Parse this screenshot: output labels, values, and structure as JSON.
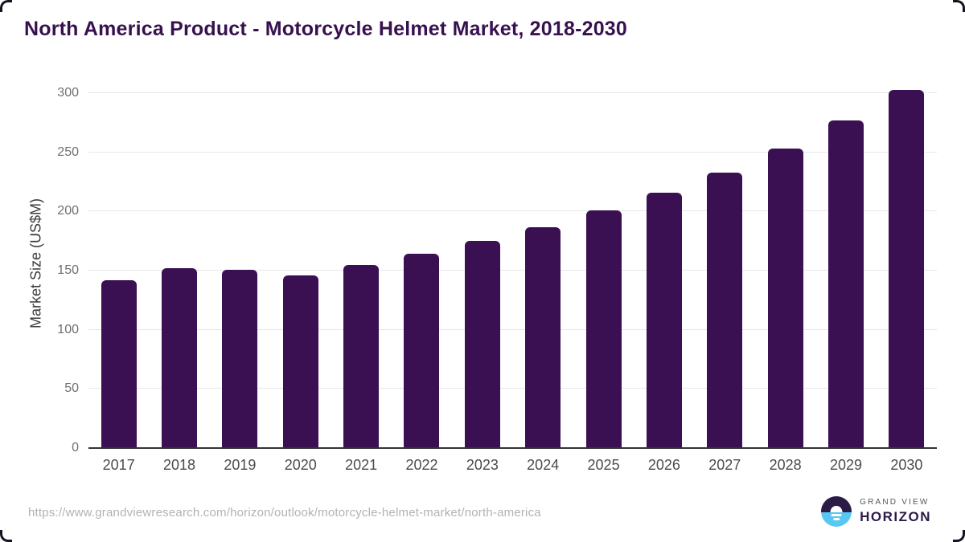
{
  "chart_data": {
    "type": "bar",
    "title": "North America Product - Motorcycle Helmet Market, 2018-2030",
    "categories": [
      "2017",
      "2018",
      "2019",
      "2020",
      "2021",
      "2022",
      "2023",
      "2024",
      "2025",
      "2026",
      "2027",
      "2028",
      "2029",
      "2030"
    ],
    "values": [
      142,
      152,
      151,
      146,
      155,
      164,
      175,
      187,
      201,
      216,
      233,
      253,
      277,
      303
    ],
    "xlabel": "",
    "ylabel": "Market Size (US$M)",
    "ylim": [
      0,
      300
    ],
    "yticks": [
      0,
      50,
      100,
      150,
      200,
      250,
      300
    ],
    "grid": "horizontal",
    "legend_position": "none"
  },
  "footer": {
    "source_url": "https://www.grandviewresearch.com/horizon/outlook/motorcycle-helmet-market/north-america",
    "logo": {
      "line1": "GRAND VIEW",
      "line2": "HORIZON"
    }
  },
  "colors": {
    "bar": "#3b1053",
    "title_text": "#38104f",
    "gridline": "#e7e7e7",
    "axis_line": "#333333",
    "y_tick_text": "#6f6f6f",
    "x_tick_text": "#4c4c4c",
    "url_text": "#b2b2b5",
    "logo_dark": "#2b1b47",
    "logo_blue": "#59c7f3"
  }
}
